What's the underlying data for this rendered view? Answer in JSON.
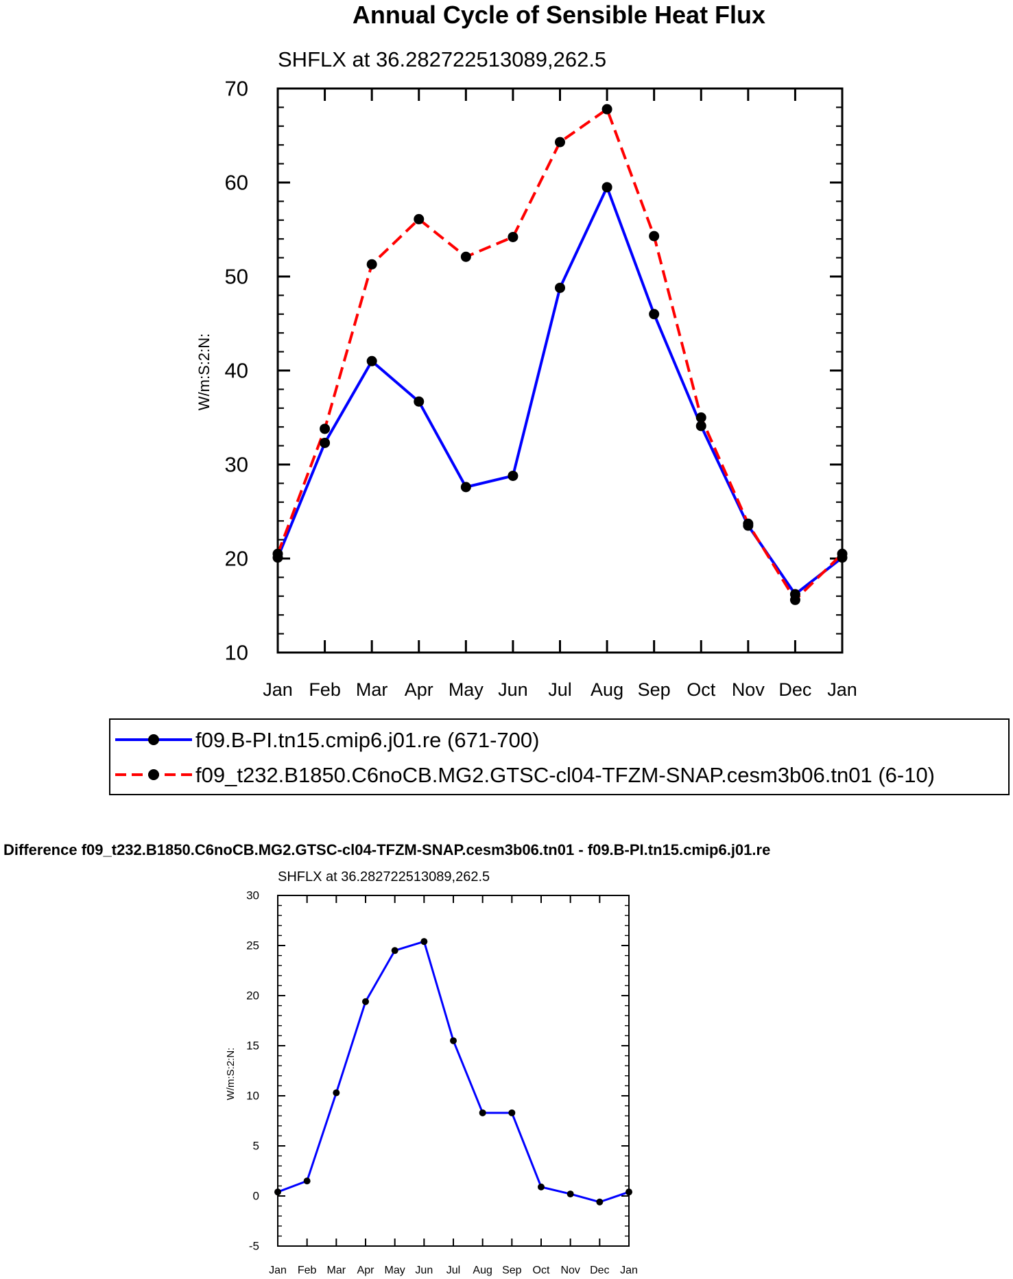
{
  "figure": {
    "title": "Annual Cycle of Sensible Heat Flux",
    "diff_title": "Difference f09_t232.B1850.C6noCB.MG2.GTSC-cl04-TFZM-SNAP.cesm3b06.tn01 - f09.B-PI.tn15.cmip6.j01.re"
  },
  "chart_data": [
    {
      "type": "line",
      "subtitle": "SHFLX at 36.282722513089,262.5",
      "xlabel": "",
      "ylabel": "W/m:S:2:N:",
      "categories": [
        "Jan",
        "Feb",
        "Mar",
        "Apr",
        "May",
        "Jun",
        "Jul",
        "Aug",
        "Sep",
        "Oct",
        "Nov",
        "Dec",
        "Jan"
      ],
      "ylim": [
        10,
        70
      ],
      "yticks": [
        10,
        20,
        30,
        40,
        50,
        60,
        70
      ],
      "grid": false,
      "legend_position": "bottom",
      "series": [
        {
          "name": "f09.B-PI.tn15.cmip6.j01.re (671-700)",
          "color": "#0000ff",
          "style": "solid",
          "values": [
            20.1,
            32.3,
            41.0,
            36.7,
            27.6,
            28.8,
            48.8,
            59.5,
            46.0,
            34.1,
            23.5,
            16.2,
            20.1
          ]
        },
        {
          "name": "f09_t232.B1850.C6noCB.MG2.GTSC-cl04-TFZM-SNAP.cesm3b06.tn01 (6-10)",
          "color": "#ff0000",
          "style": "dashed",
          "values": [
            20.5,
            33.8,
            51.3,
            56.1,
            52.1,
            54.2,
            64.3,
            67.8,
            54.3,
            35.0,
            23.7,
            15.6,
            20.5
          ]
        }
      ]
    },
    {
      "type": "line",
      "subtitle": "SHFLX at 36.282722513089,262.5",
      "xlabel": "",
      "ylabel": "W/m:S:2:N:",
      "categories": [
        "Jan",
        "Feb",
        "Mar",
        "Apr",
        "May",
        "Jun",
        "Jul",
        "Aug",
        "Sep",
        "Oct",
        "Nov",
        "Dec",
        "Jan"
      ],
      "ylim": [
        -5,
        30
      ],
      "yticks": [
        -5,
        0,
        5,
        10,
        15,
        20,
        25,
        30
      ],
      "grid": false,
      "series": [
        {
          "name": "Difference",
          "color": "#0000ff",
          "style": "solid",
          "values": [
            0.4,
            1.5,
            10.3,
            19.4,
            24.5,
            25.4,
            15.5,
            8.3,
            8.3,
            0.9,
            0.2,
            -0.6,
            0.4
          ]
        }
      ]
    }
  ]
}
